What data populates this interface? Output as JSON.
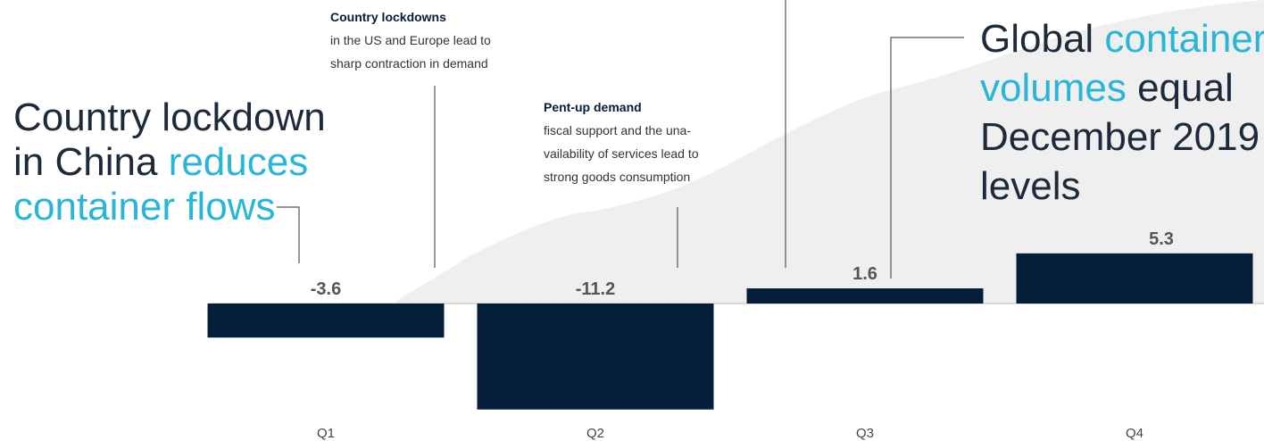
{
  "chart_data": {
    "type": "bar",
    "categories": [
      "Q1",
      "Q2",
      "Q3",
      "Q4"
    ],
    "values": [
      -3.6,
      -11.2,
      1.6,
      5.3
    ],
    "color": "#041e3a",
    "highlight_color": "#29b6d6",
    "notes": [
      {
        "title": "Country lockdowns",
        "lines": [
          "in the US and Europe lead to",
          "sharp contraction in demand"
        ]
      },
      {
        "title": "Pent-up demand",
        "lines": [
          "fiscal support and the una-",
          "vailability of services lead to",
          "strong goods consumption"
        ]
      }
    ],
    "headlines": [
      {
        "lines": [
          [
            {
              "text": "Country lockdown"
            }
          ],
          [
            {
              "text": "in China "
            },
            {
              "text": "reduces",
              "highlight": true
            }
          ],
          [
            {
              "text": "container flows",
              "highlight": true
            }
          ]
        ]
      },
      {
        "lines": [
          [
            {
              "text": "Global "
            },
            {
              "text": "container",
              "highlight": true
            }
          ],
          [
            {
              "text": "volumes",
              "highlight": true
            },
            {
              "text": " equal"
            }
          ],
          [
            {
              "text": "December 2019"
            }
          ],
          [
            {
              "text": "levels"
            }
          ]
        ]
      }
    ]
  }
}
